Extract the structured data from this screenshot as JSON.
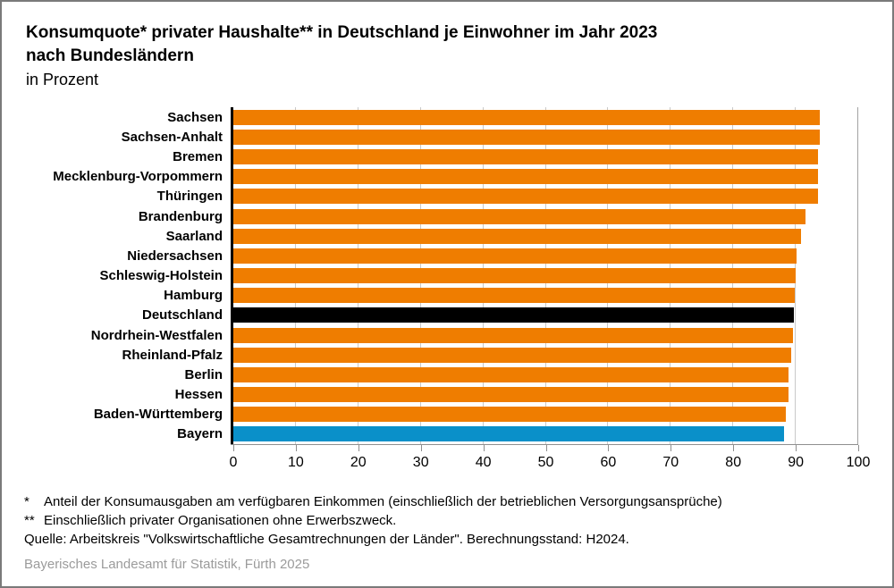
{
  "title": {
    "line1": "Konsumquote* privater Haushalte** in Deutschland je Einwohner im Jahr 2023",
    "line2": "nach Bundesländern",
    "subtitle": "in Prozent"
  },
  "colors": {
    "bar_default": "#ef7d00",
    "bar_deutschland": "#000000",
    "bar_bayern": "#0a90c9",
    "gridline": "#c9c9c9",
    "axis_line": "#000000",
    "baseline": "#8f8f8f",
    "credit_text": "#9b9b9b",
    "frame_border": "#7a7a7a"
  },
  "chart_data": {
    "type": "bar",
    "orientation": "horizontal",
    "title": "Konsumquote privater Haushalte in Deutschland je Einwohner im Jahr 2023 nach Bundesländern",
    "xlabel": "in Prozent",
    "ylabel": "",
    "xlim": [
      0,
      100
    ],
    "xticks": [
      0,
      10,
      20,
      30,
      40,
      50,
      60,
      70,
      80,
      90,
      100
    ],
    "grid": "vertical",
    "legend": "none",
    "categories": [
      "Sachsen",
      "Sachsen-Anhalt",
      "Bremen",
      "Mecklenburg-Vorpommern",
      "Thüringen",
      "Brandenburg",
      "Saarland",
      "Niedersachsen",
      "Schleswig-Holstein",
      "Hamburg",
      "Deutschland",
      "Nordrhein-Westfalen",
      "Rheinland-Pfalz",
      "Berlin",
      "Hessen",
      "Baden-Württemberg",
      "Bayern"
    ],
    "values": [
      93.9,
      93.8,
      93.5,
      93.5,
      93.5,
      91.5,
      90.9,
      90.1,
      90.0,
      89.8,
      89.7,
      89.6,
      89.2,
      88.9,
      88.8,
      88.4,
      88.1
    ],
    "bar_colors": [
      "#ef7d00",
      "#ef7d00",
      "#ef7d00",
      "#ef7d00",
      "#ef7d00",
      "#ef7d00",
      "#ef7d00",
      "#ef7d00",
      "#ef7d00",
      "#ef7d00",
      "#000000",
      "#ef7d00",
      "#ef7d00",
      "#ef7d00",
      "#ef7d00",
      "#ef7d00",
      "#0a90c9"
    ]
  },
  "footnotes": [
    {
      "marker": "*",
      "text": "Anteil der Konsumausgaben am verfügbaren Einkommen (einschließlich der betrieblichen Versorgungsansprüche)"
    },
    {
      "marker": "**",
      "text": "Einschließlich privater Organisationen ohne Erwerbszweck."
    }
  ],
  "source_line": "Quelle: Arbeitskreis \"Volkswirtschaftliche Gesamtrechnungen der Länder\". Berechnungsstand: H2024.",
  "credit": "Bayerisches Landesamt für Statistik, Fürth 2025"
}
